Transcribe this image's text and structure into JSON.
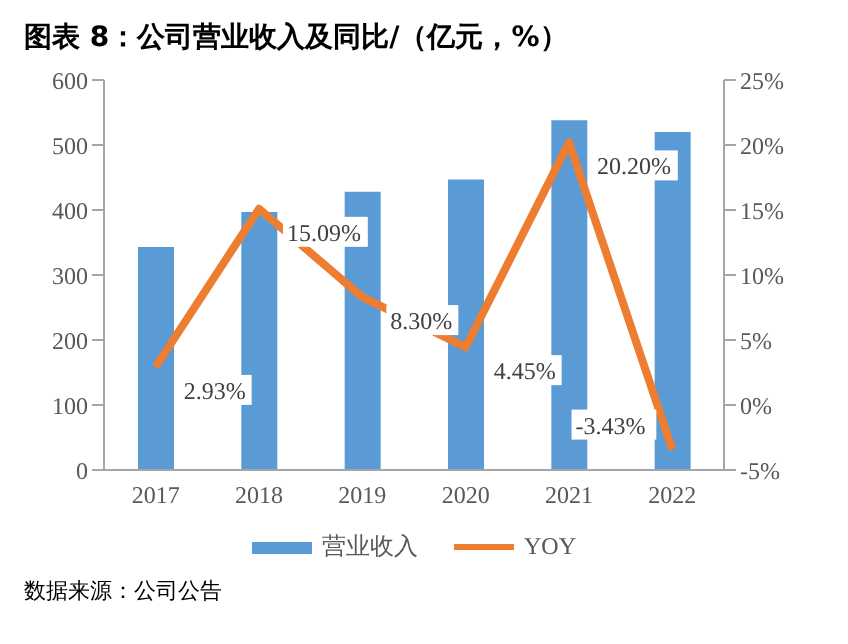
{
  "chart_data": {
    "type": "bar",
    "title": "图表 8：公司营业收入及同比/（亿元，%）",
    "categories": [
      "2017",
      "2018",
      "2019",
      "2020",
      "2021",
      "2022"
    ],
    "series": [
      {
        "name": "营业收入",
        "color": "#5b9bd5",
        "values": [
          343,
          397,
          428,
          447,
          538,
          520
        ]
      },
      {
        "name": "YOY",
        "type": "line",
        "axis": "y2",
        "color": "#ed7d31",
        "values": [
          2.93,
          15.09,
          8.3,
          4.45,
          20.2,
          -3.43
        ],
        "value_labels": [
          "2.93%",
          "15.09%",
          "8.30%",
          "4.45%",
          "20.20%",
          "-3.43%"
        ]
      }
    ],
    "ylim": [
      0,
      600
    ],
    "yticks": [
      0,
      100,
      200,
      300,
      400,
      500,
      600
    ],
    "y2lim": [
      -5,
      25
    ],
    "y2ticks": [
      {
        "value": -5,
        "label": "-5%"
      },
      {
        "value": 0,
        "label": "0%"
      },
      {
        "value": 5,
        "label": "5%"
      },
      {
        "value": 10,
        "label": "10%"
      },
      {
        "value": 15,
        "label": "15%"
      },
      {
        "value": 20,
        "label": "20%"
      },
      {
        "value": 25,
        "label": "25%"
      }
    ],
    "legend": "bottom",
    "marker": "none",
    "annotations": [
      "数据来源：公司公告"
    ]
  }
}
